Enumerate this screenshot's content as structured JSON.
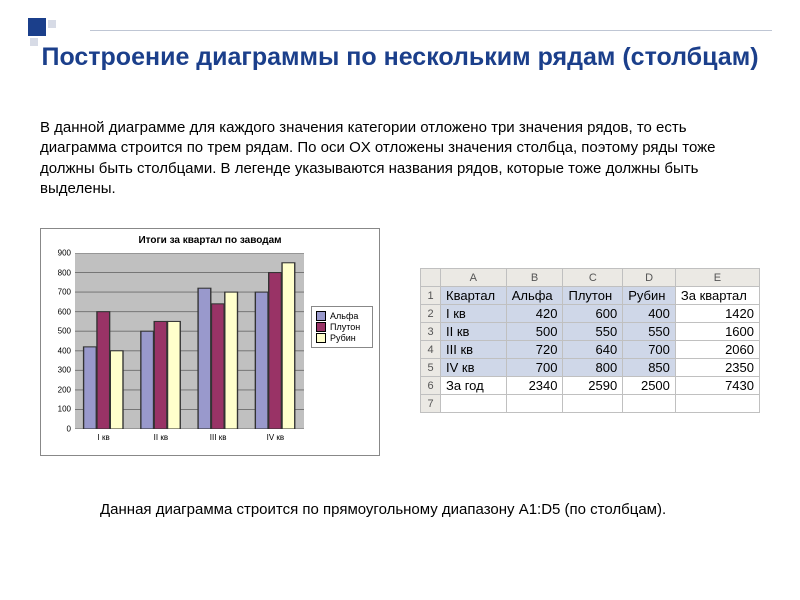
{
  "title": "Построение диаграммы по нескольким рядам (столбцам)",
  "body": "В данной диаграмме для каждого значения категории отложено три значения рядов, то есть диаграмма строится по трем рядам. По оси OX отложены значения столбца, поэтому ряды тоже должны быть столбцами. В легенде указываются названия рядов, которые тоже должны быть выделены.",
  "footer": "Данная диаграмма строится по прямоугольному диапазону A1:D5 (по столбцам).",
  "chart": {
    "type": "bar",
    "title": "Итоги за квартал по заводам",
    "categories": [
      "I кв",
      "II кв",
      "III кв",
      "IV кв"
    ],
    "series": [
      {
        "name": "Альфа",
        "color": "#9999cc",
        "values": [
          420,
          500,
          720,
          700
        ]
      },
      {
        "name": "Плутон",
        "color": "#993366",
        "values": [
          600,
          550,
          640,
          800
        ]
      },
      {
        "name": "Рубин",
        "color": "#ffffcc",
        "values": [
          400,
          550,
          700,
          850
        ]
      }
    ],
    "ylim": [
      0,
      900
    ],
    "ytick_step": 100,
    "background_color": "#c0c0c0",
    "grid_color": "#6b6b6b",
    "legend_border": "#888888",
    "title_fontsize": 10,
    "axis_fontsize": 8
  },
  "sheet": {
    "col_headers": [
      "A",
      "B",
      "C",
      "D",
      "E"
    ],
    "rows": [
      {
        "n": "1",
        "cells": [
          "Квартал",
          "Альфа",
          "Плутон",
          "Рубин",
          "За квартал"
        ],
        "num_from": 99
      },
      {
        "n": "2",
        "cells": [
          "I кв",
          "420",
          "600",
          "400",
          "1420"
        ],
        "num_from": 1
      },
      {
        "n": "3",
        "cells": [
          "II кв",
          "500",
          "550",
          "550",
          "1600"
        ],
        "num_from": 1
      },
      {
        "n": "4",
        "cells": [
          "III кв",
          "720",
          "640",
          "700",
          "2060"
        ],
        "num_from": 1
      },
      {
        "n": "5",
        "cells": [
          "IV кв",
          "700",
          "800",
          "850",
          "2350"
        ],
        "num_from": 1
      },
      {
        "n": "6",
        "cells": [
          "За год",
          "2340",
          "2590",
          "2500",
          "7430"
        ],
        "num_from": 1
      },
      {
        "n": "7",
        "cells": [
          "",
          "",
          "",
          "",
          ""
        ],
        "num_from": 99
      }
    ],
    "selection": {
      "r0": 0,
      "r1": 4,
      "c0": 0,
      "c1": 3
    },
    "header_bg": "#ebe9e4",
    "selection_bg": "#cfd7e8",
    "border_color": "#c0c0c0"
  }
}
